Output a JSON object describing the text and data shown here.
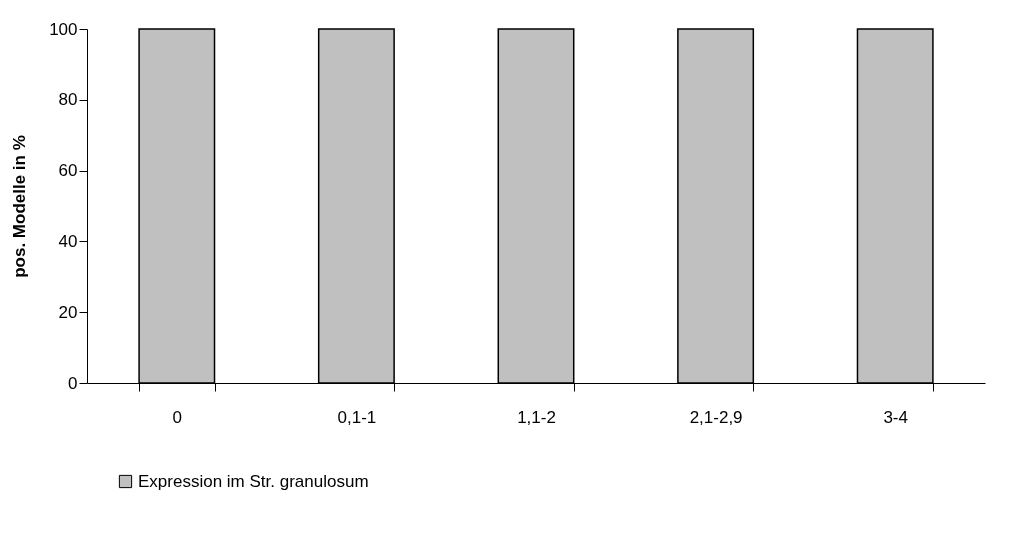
{
  "chart_data": {
    "type": "bar",
    "ylabel": "pos. Modelle in %",
    "categories": [
      "0",
      "0,1-1",
      "1,1-2",
      "2,1-2,9",
      "3-4"
    ],
    "series": [
      {
        "name": "Expression im Str. granulosum",
        "color": "#c0c0c0",
        "values": [
          100,
          100,
          100,
          100,
          100
        ]
      }
    ],
    "ylim": [
      0,
      100
    ],
    "yticks": [
      0,
      20,
      40,
      60,
      80,
      100
    ],
    "grid": false,
    "legend": "bottom"
  }
}
